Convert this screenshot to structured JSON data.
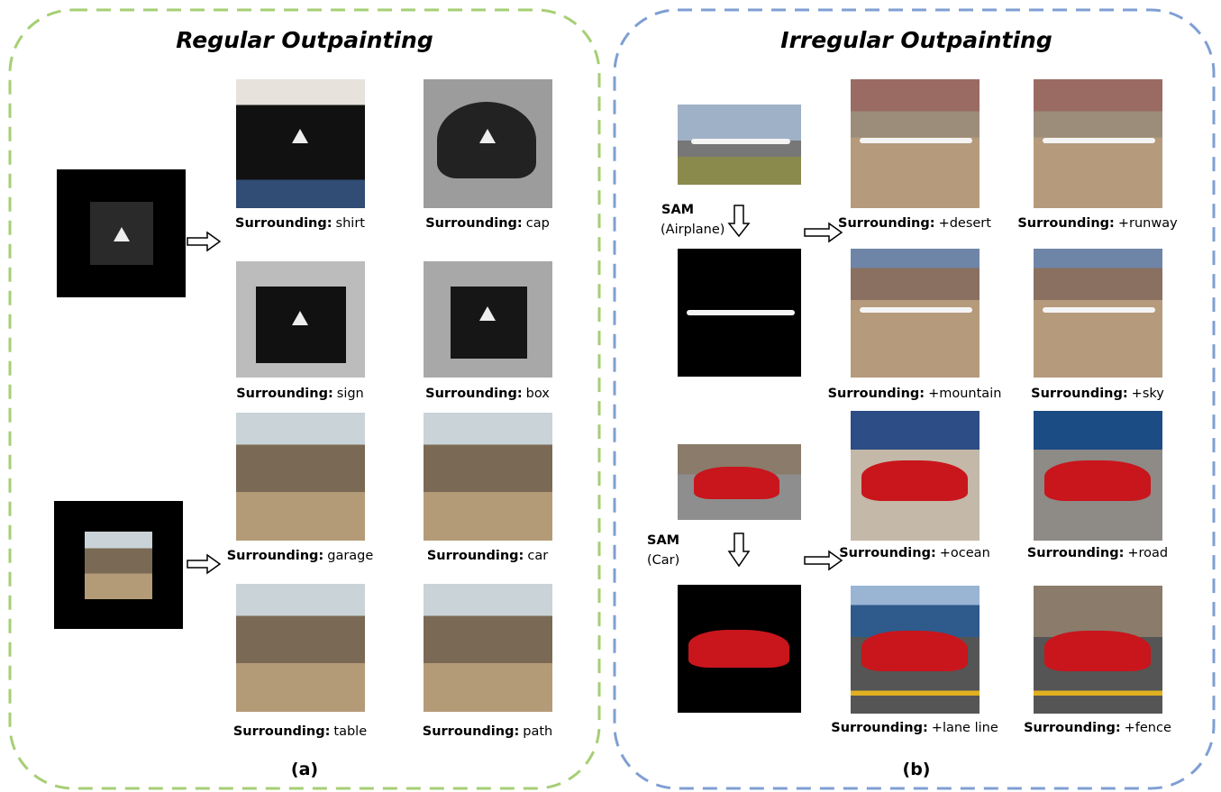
{
  "panel_a": {
    "title": "Regular Outpainting",
    "label": "(a)",
    "captions": [
      {
        "key": "Surrounding:",
        "value": "shirt"
      },
      {
        "key": "Surrounding:",
        "value": "cap"
      },
      {
        "key": "Surrounding:",
        "value": "sign"
      },
      {
        "key": "Surrounding:",
        "value": "box"
      },
      {
        "key": "Surrounding:",
        "value": "garage"
      },
      {
        "key": "Surrounding:",
        "value": "car"
      },
      {
        "key": "Surrounding:",
        "value": "table"
      },
      {
        "key": "Surrounding:",
        "value": "path"
      }
    ]
  },
  "panel_b": {
    "title": "Irregular Outpainting",
    "label": "(b)",
    "sam": [
      {
        "name": "SAM",
        "object": "(Airplane)"
      },
      {
        "name": "SAM",
        "object": "(Car)"
      }
    ],
    "captions": [
      {
        "key": "Surrounding:",
        "value": "+desert"
      },
      {
        "key": "Surrounding:",
        "value": "+runway"
      },
      {
        "key": "Surrounding:",
        "value": "+mountain"
      },
      {
        "key": "Surrounding:",
        "value": "+sky"
      },
      {
        "key": "Surrounding:",
        "value": "+ocean"
      },
      {
        "key": "Surrounding:",
        "value": "+road"
      },
      {
        "key": "Surrounding:",
        "value": "+lane line"
      },
      {
        "key": "Surrounding:",
        "value": "+fence"
      }
    ]
  }
}
